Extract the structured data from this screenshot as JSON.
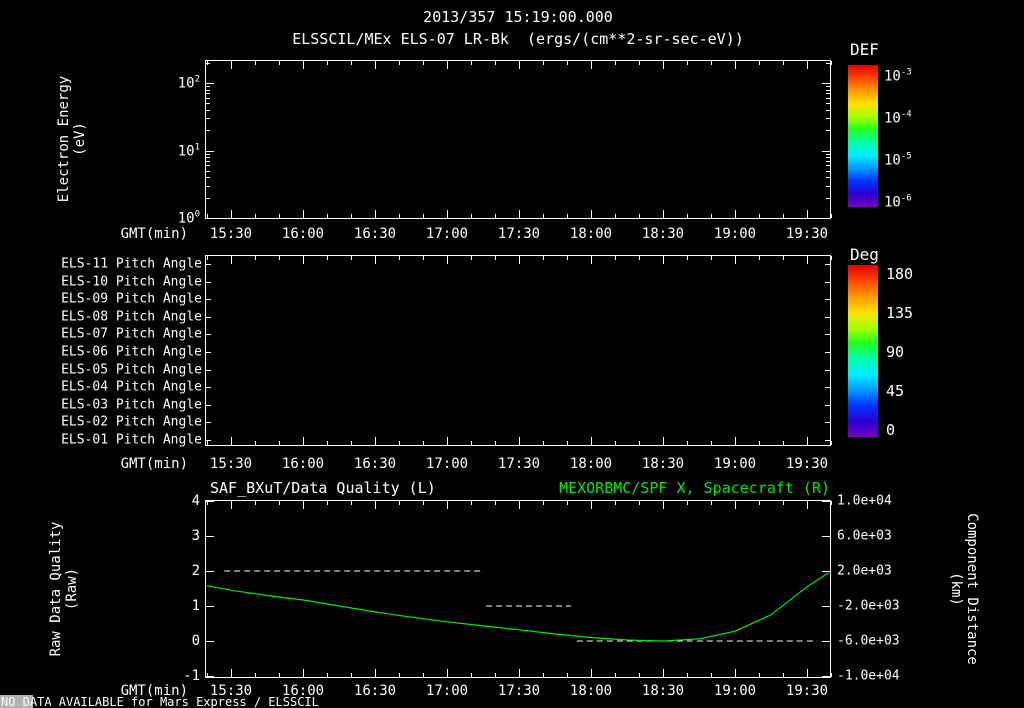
{
  "header": {
    "title": "2013/357 15:19:00.000",
    "subtitle": "ELSSCIL/MEx ELS-07 LR-Bk  (ergs/(cm**2-sr-sec-eV))"
  },
  "axes": {
    "gmt_label": "GMT(min)",
    "time_ticks": [
      "15:30",
      "16:00",
      "16:30",
      "17:00",
      "17:30",
      "18:00",
      "18:30",
      "19:00",
      "19:30"
    ]
  },
  "panel_energy": {
    "ylabel": [
      "Electron Energy",
      "(eV)"
    ],
    "yticks": [
      {
        "base": "10",
        "exp": "2"
      },
      {
        "base": "10",
        "exp": "1"
      },
      {
        "base": "10",
        "exp": "0"
      }
    ],
    "colorbar": {
      "title": "DEF",
      "labels": [
        {
          "base": "10",
          "exp": "-3"
        },
        {
          "base": "10",
          "exp": "-4"
        },
        {
          "base": "10",
          "exp": "-5"
        },
        {
          "base": "10",
          "exp": "-6"
        }
      ],
      "colors": [
        "#e00000",
        "#ff4400",
        "#ff9900",
        "#ffe000",
        "#aaff00",
        "#22ff22",
        "#00ffaa",
        "#00eeff",
        "#0099ff",
        "#0033ff",
        "#2a00d5",
        "#7700bb"
      ]
    }
  },
  "panel_pitch": {
    "labels": [
      "ELS-11 Pitch Angle",
      "ELS-10 Pitch Angle",
      "ELS-09 Pitch Angle",
      "ELS-08 Pitch Angle",
      "ELS-07 Pitch Angle",
      "ELS-06 Pitch Angle",
      "ELS-05 Pitch Angle",
      "ELS-04 Pitch Angle",
      "ELS-03 Pitch Angle",
      "ELS-02 Pitch Angle",
      "ELS-01 Pitch Angle"
    ],
    "colorbar": {
      "title": "Deg",
      "labels": [
        "180",
        "135",
        "90",
        "45",
        "0"
      ],
      "colors": [
        "#e00000",
        "#ff4400",
        "#ff9900",
        "#ffe000",
        "#aaff00",
        "#22ff22",
        "#00ffaa",
        "#00eeff",
        "#0099ff",
        "#0033ff",
        "#2a00d5",
        "#7700bb"
      ]
    }
  },
  "panel_quality": {
    "title_left": "SAF_BXuT/Data Quality (L)",
    "title_right": "MEXORBMC/SPF X, Spacecraft (R)",
    "ylabel_left": [
      "Raw Data Quality",
      "(Raw)"
    ],
    "ylabel_right": [
      "Component Distance",
      "(km)"
    ],
    "yticks_left": [
      "4",
      "3",
      "2",
      "1",
      "0",
      "-1"
    ],
    "yticks_right": [
      "1.0e+04",
      "6.0e+03",
      "2.0e+03",
      "-2.0e+03",
      "-6.0e+03",
      "-1.0e+04"
    ]
  },
  "footer": {
    "message": "NO DATA AVAILABLE for Mars Express / ELSSCIL"
  },
  "colors": {
    "accent_green": "#00e800",
    "text": "#ffffff",
    "background": "#000000"
  },
  "chart_data": [
    {
      "type": "heatmap",
      "title": "ELSSCIL/MEx ELS-07 LR-Bk",
      "units": "ergs/(cm**2-sr-sec-eV)",
      "xlabel": "GMT(min)",
      "ylabel": "Electron Energy (eV)",
      "x_ticks": [
        "15:30",
        "16:00",
        "16:30",
        "17:00",
        "17:30",
        "18:00",
        "18:30",
        "19:00",
        "19:30"
      ],
      "y_scale": "log",
      "ylim": [
        1,
        220
      ],
      "colorbar": {
        "label": "DEF",
        "min": "1e-6",
        "max": "1e-3"
      },
      "values": [],
      "note": "panel empty - no data available"
    },
    {
      "type": "heatmap",
      "rows": [
        "ELS-11 Pitch Angle",
        "ELS-10 Pitch Angle",
        "ELS-09 Pitch Angle",
        "ELS-08 Pitch Angle",
        "ELS-07 Pitch Angle",
        "ELS-06 Pitch Angle",
        "ELS-05 Pitch Angle",
        "ELS-04 Pitch Angle",
        "ELS-03 Pitch Angle",
        "ELS-02 Pitch Angle",
        "ELS-01 Pitch Angle"
      ],
      "xlabel": "GMT(min)",
      "x_ticks": [
        "15:30",
        "16:00",
        "16:30",
        "17:00",
        "17:30",
        "18:00",
        "18:30",
        "19:00",
        "19:30"
      ],
      "colorbar": {
        "label": "Deg",
        "min": 0,
        "max": 180
      },
      "values": [],
      "note": "panel empty - no data available"
    },
    {
      "type": "line",
      "xlabel": "GMT(min)",
      "x_ticks": [
        "15:30",
        "16:00",
        "16:30",
        "17:00",
        "17:30",
        "18:00",
        "18:30",
        "19:00",
        "19:30"
      ],
      "xlim_hours": [
        15.3167,
        19.6667
      ],
      "ylim_left": [
        -1,
        4
      ],
      "ylim_right": [
        -10000,
        10000
      ],
      "legend_position": "top",
      "series": [
        {
          "name": "SAF_BXuT/Data Quality (L)",
          "axis": "left",
          "color": "#ffffff",
          "style": "dashed",
          "segments": [
            {
              "value": 2,
              "start_hour": 15.45,
              "end_hour": 17.25
            },
            {
              "value": 1,
              "start_hour": 17.27,
              "end_hour": 17.86
            },
            {
              "value": 0,
              "start_hour": 17.9,
              "end_hour": 19.57
            }
          ]
        },
        {
          "name": "MEXORBMC/SPF X, Spacecraft (R)",
          "axis": "right",
          "color": "#00e800",
          "style": "solid",
          "x_hours": [
            15.33,
            15.5,
            15.75,
            16.0,
            16.25,
            16.5,
            16.75,
            17.0,
            17.25,
            17.5,
            17.75,
            18.0,
            18.25,
            18.5,
            18.75,
            19.0,
            19.25,
            19.5,
            19.65
          ],
          "y_left_units": [
            1.58,
            1.45,
            1.3,
            1.17,
            1.0,
            0.83,
            0.68,
            0.55,
            0.43,
            0.32,
            0.2,
            0.1,
            0.03,
            0.0,
            0.06,
            0.28,
            0.75,
            1.55,
            1.95
          ],
          "y_km": [
            320,
            -200,
            -800,
            -1320,
            -2000,
            -2680,
            -3280,
            -3800,
            -4280,
            -4720,
            -5200,
            -5600,
            -5880,
            -6000,
            -5760,
            -4880,
            -3000,
            200,
            1800
          ]
        }
      ]
    }
  ]
}
